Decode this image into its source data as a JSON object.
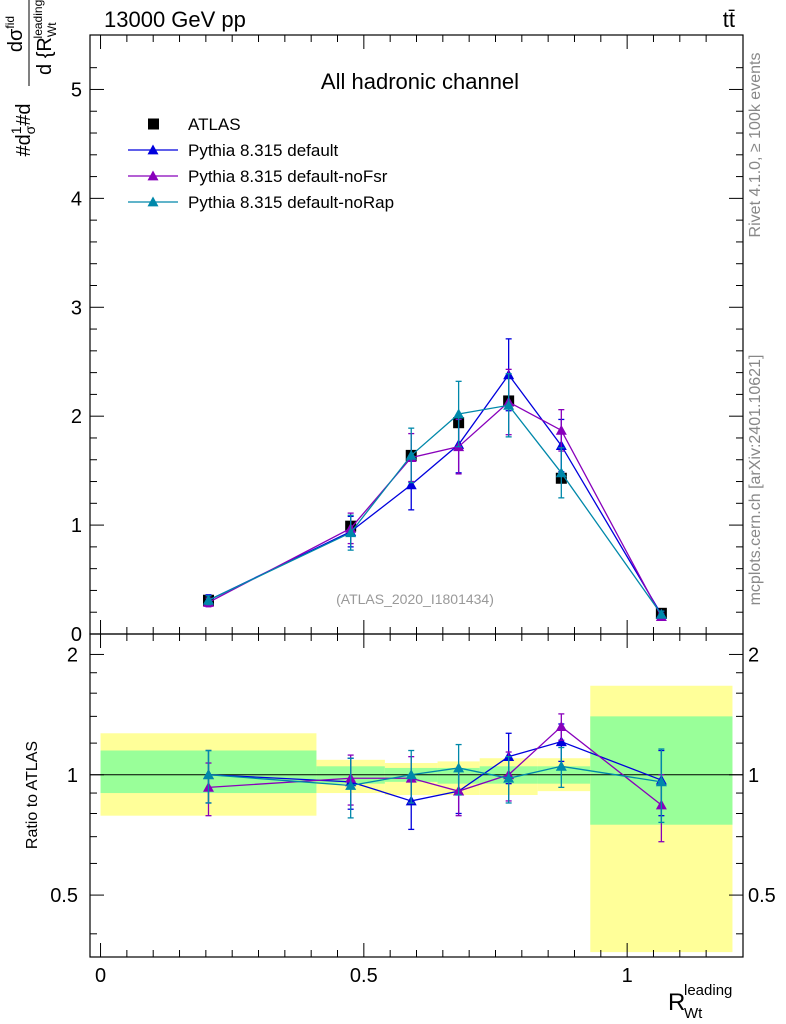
{
  "header": {
    "left": "13000 GeV pp",
    "right": "tt̄"
  },
  "side_text": {
    "rivet": "Rivet 4.1.0, ≥ 100k events",
    "mcplots": "mcplots.cern.ch [arXiv:2401.10621]"
  },
  "chart_data": [
    {
      "type": "scatter",
      "panel": "main",
      "title": "All hadronic channel",
      "analysis_label": "(ATLAS_2020_I1801434)",
      "ylabel": "#d(1/σ)#d dσ^fid / d{R_Wt^leading}",
      "ylim": [
        0,
        5.5
      ],
      "yticks": [
        "0",
        "1",
        "2",
        "3",
        "4",
        "5"
      ],
      "series": [
        {
          "name": "ATLAS",
          "color": "#000000",
          "marker": "square",
          "x": [
            0.205,
            0.475,
            0.59,
            0.68,
            0.775,
            0.875,
            1.065
          ],
          "y": [
            0.31,
            0.99,
            1.64,
            1.94,
            2.14,
            1.43,
            0.19
          ]
        },
        {
          "name": "Pythia 8.315 default",
          "color": "#0000dd",
          "marker": "triangle",
          "x": [
            0.205,
            0.475,
            0.59,
            0.68,
            0.775,
            0.875,
            1.065
          ],
          "y": [
            0.31,
            0.94,
            1.37,
            1.74,
            2.38,
            1.73,
            0.18
          ],
          "err": [
            0.05,
            0.14,
            0.23,
            0.26,
            0.33,
            0.24,
            0.03
          ]
        },
        {
          "name": "Pythia 8.315 default-noFsr",
          "color": "#8800bb",
          "marker": "triangle",
          "x": [
            0.205,
            0.475,
            0.59,
            0.68,
            0.775,
            0.875,
            1.065
          ],
          "y": [
            0.29,
            0.97,
            1.62,
            1.72,
            2.13,
            1.87,
            0.16
          ],
          "err": [
            0.04,
            0.14,
            0.22,
            0.25,
            0.3,
            0.19,
            0.03
          ]
        },
        {
          "name": "Pythia 8.315 default-noRap",
          "color": "#0088aa",
          "marker": "triangle",
          "x": [
            0.205,
            0.475,
            0.59,
            0.68,
            0.775,
            0.875,
            1.065
          ],
          "y": [
            0.31,
            0.93,
            1.64,
            2.02,
            2.1,
            1.48,
            0.18
          ],
          "err": [
            0.04,
            0.16,
            0.25,
            0.3,
            0.29,
            0.23,
            0.03
          ]
        }
      ]
    },
    {
      "type": "scatter",
      "panel": "ratio",
      "xlabel": "R_Wt^leading",
      "ylabel": "Ratio to ATLAS",
      "xlim": [
        -0.02,
        1.22
      ],
      "xticks": [
        "0",
        "0.5",
        "1"
      ],
      "ylim": [
        0.35,
        2.25
      ],
      "yticks": [
        "0.5",
        "1",
        "2"
      ],
      "bands": {
        "bin_edges": [
          0,
          0.41,
          0.54,
          0.64,
          0.72,
          0.83,
          0.93,
          1.2
        ],
        "stat_up": [
          1.15,
          1.05,
          1.04,
          1.04,
          1.05,
          1.05,
          1.4
        ],
        "stat_down": [
          0.9,
          0.95,
          0.96,
          0.95,
          0.95,
          0.95,
          0.75
        ],
        "total_up": [
          1.27,
          1.09,
          1.07,
          1.08,
          1.1,
          1.1,
          1.67
        ],
        "total_down": [
          0.79,
          0.9,
          0.89,
          0.89,
          0.89,
          0.91,
          0.36
        ],
        "stat_color": "#99ff99",
        "total_color": "#ffff99"
      },
      "series": [
        {
          "name": "Pythia 8.315 default",
          "color": "#0000dd",
          "x": [
            0.205,
            0.475,
            0.59,
            0.68,
            0.775,
            0.875,
            1.065
          ],
          "y": [
            1.0,
            0.96,
            0.86,
            0.91,
            1.11,
            1.21,
            0.97
          ],
          "err": [
            0.15,
            0.14,
            0.13,
            0.11,
            0.16,
            0.13,
            0.18
          ]
        },
        {
          "name": "Pythia 8.315 default-noFsr",
          "color": "#8800bb",
          "x": [
            0.205,
            0.475,
            0.59,
            0.68,
            0.775,
            0.875,
            1.065
          ],
          "y": [
            0.93,
            0.98,
            0.98,
            0.91,
            1.0,
            1.32,
            0.84
          ],
          "err": [
            0.14,
            0.14,
            0.13,
            0.12,
            0.14,
            0.1,
            0.16
          ]
        },
        {
          "name": "Pythia 8.315 default-noRap",
          "color": "#0088aa",
          "x": [
            0.205,
            0.475,
            0.59,
            0.68,
            0.775,
            0.875,
            1.065
          ],
          "y": [
            1.0,
            0.94,
            1.0,
            1.04,
            0.98,
            1.05,
            0.96
          ],
          "err": [
            0.15,
            0.16,
            0.15,
            0.15,
            0.13,
            0.12,
            0.2
          ]
        }
      ]
    }
  ]
}
